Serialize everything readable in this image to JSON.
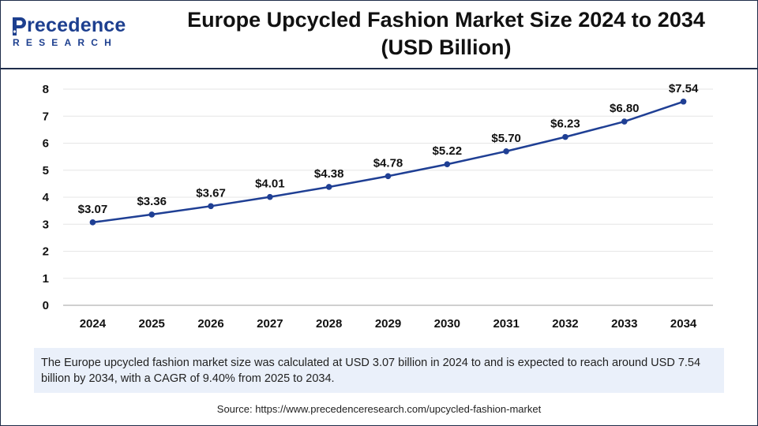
{
  "brand": {
    "logo_main": "recedence",
    "logo_sub": "RESEARCH"
  },
  "title": {
    "line1": "Europe Upcycled Fashion Market Size 2024 to 2034",
    "line2": "(USD Billion)"
  },
  "chart_data": {
    "type": "line",
    "x": [
      "2024",
      "2025",
      "2026",
      "2027",
      "2028",
      "2029",
      "2030",
      "2031",
      "2032",
      "2033",
      "2034"
    ],
    "series": [
      {
        "values": [
          3.07,
          3.36,
          3.67,
          4.01,
          4.38,
          4.78,
          5.22,
          5.7,
          6.23,
          6.8,
          7.54
        ],
        "labels": [
          "$3.07",
          "$3.36",
          "$3.67",
          "$4.01",
          "$4.38",
          "$4.78",
          "$5.22",
          "$5.70",
          "$6.23",
          "$6.80",
          "$7.54"
        ],
        "color": "#1f3f94"
      }
    ],
    "ylim": [
      0,
      8
    ],
    "yticks": [
      "0",
      "1",
      "2",
      "3",
      "4",
      "5",
      "6",
      "7",
      "8"
    ],
    "grid": true,
    "grid_color": "#e6e6e6"
  },
  "summary": "The Europe upcycled fashion market size was calculated at USD 3.07 billion in 2024 to and is expected to reach around USD 7.54 billion by 2034, with a CAGR of 9.40% from 2025 to 2034.",
  "source": "Source: https://www.precedenceresearch.com/upcycled-fashion-market"
}
